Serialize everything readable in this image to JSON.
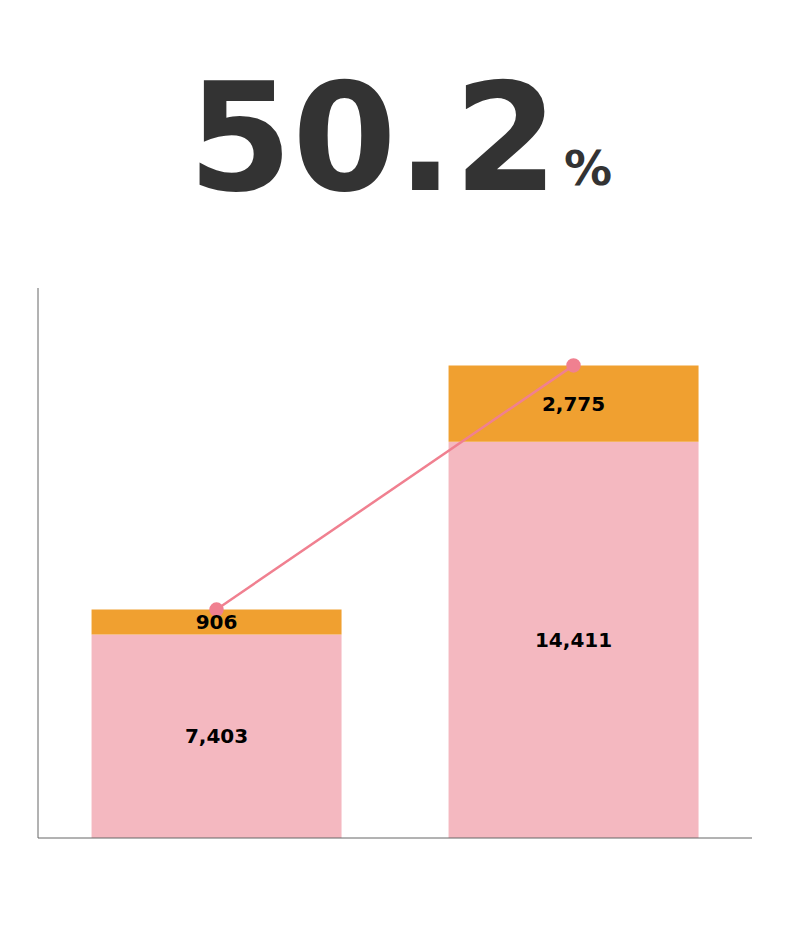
{
  "chart_data": {
    "type": "bar",
    "stacked": true,
    "annotations": [
      "50.2",
      "%"
    ],
    "categories": [
      null,
      null
    ],
    "series": [
      {
        "type": "bar",
        "color": "#f4b8c0",
        "values": [
          7403,
          14411
        ],
        "value_labels": [
          "7,403",
          "14,411"
        ],
        "data_labels": true
      },
      {
        "type": "bar",
        "color": "#f0a030",
        "values": [
          906,
          2775
        ],
        "value_labels": [
          "906",
          "2,775"
        ],
        "data_labels": true
      },
      {
        "type": "line",
        "color": "#f08090",
        "marker": "circle",
        "values": [
          8309,
          17186
        ]
      }
    ],
    "ylim": [
      0,
      20000
    ],
    "grid": false,
    "tick_labels": false
  }
}
